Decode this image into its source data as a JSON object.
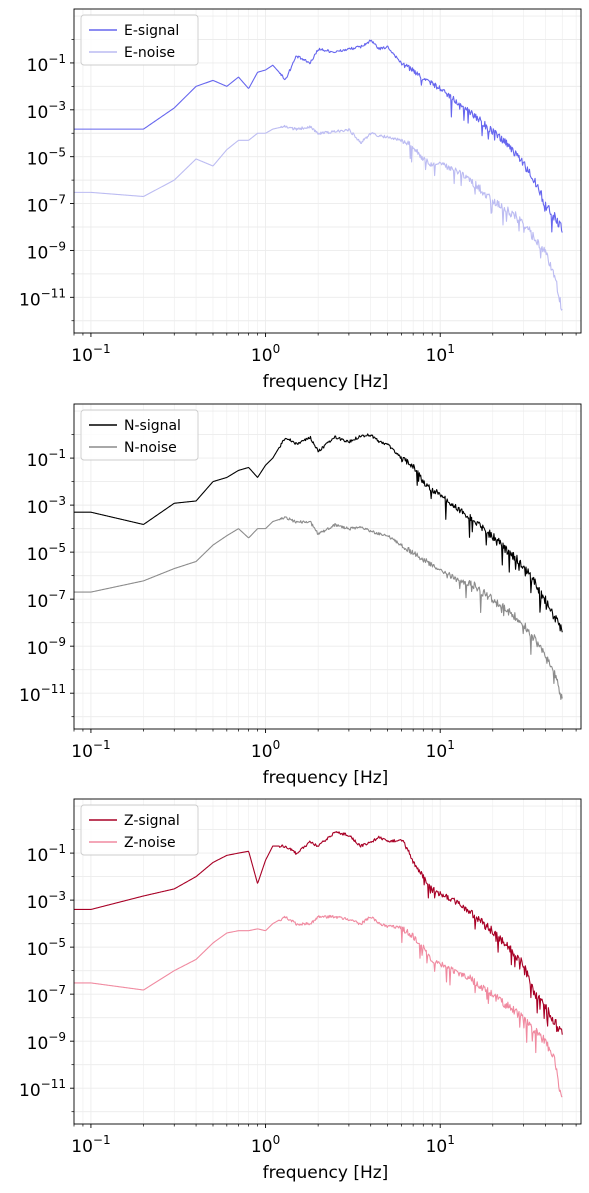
{
  "chart_data": [
    {
      "type": "line",
      "xscale": "log",
      "yscale": "log",
      "xlabel": "frequency [Hz]",
      "xlim": [
        0.08,
        64
      ],
      "ylim": [
        3e-13,
        20
      ],
      "xticks": [
        0.1,
        1,
        10
      ],
      "xtick_labels": [
        {
          "base": "10",
          "exp": "−1"
        },
        {
          "base": "10",
          "exp": "0"
        },
        {
          "base": "10",
          "exp": "1"
        }
      ],
      "yticks": [
        1e-11,
        1e-09,
        1e-07,
        1e-05,
        0.001,
        0.1
      ],
      "ytick_labels": [
        {
          "base": "10",
          "exp": "−11"
        },
        {
          "base": "10",
          "exp": "−9"
        },
        {
          "base": "10",
          "exp": "−7"
        },
        {
          "base": "10",
          "exp": "−5"
        },
        {
          "base": "10",
          "exp": "−3"
        },
        {
          "base": "10",
          "exp": "−1"
        }
      ],
      "grid": true,
      "legend": "top-left",
      "series": [
        {
          "name": "E-signal",
          "color": "#6666ee",
          "x": [
            0.05,
            0.1,
            0.2,
            0.3,
            0.4,
            0.5,
            0.6,
            0.7,
            0.8,
            0.9,
            1.0,
            1.1,
            1.3,
            1.5,
            1.8,
            2.0,
            2.5,
            3.0,
            3.5,
            4.0,
            4.5,
            5.0,
            6.0,
            7.0,
            8.0,
            9.0,
            10.0,
            12.0,
            15.0,
            20.0,
            25.0,
            30.0,
            35.0,
            40.0,
            45.0,
            50.0
          ],
          "y": [
            0.00015,
            0.00015,
            0.00015,
            0.0012,
            0.01,
            0.018,
            0.01,
            0.025,
            0.008,
            0.04,
            0.05,
            0.08,
            0.02,
            0.2,
            0.1,
            0.4,
            0.3,
            0.4,
            0.5,
            0.9,
            0.4,
            0.5,
            0.1,
            0.05,
            0.02,
            0.015,
            0.008,
            0.003,
            0.0008,
            0.00012,
            3e-05,
            5e-06,
            1e-06,
            1e-07,
            3e-08,
            1e-08
          ]
        },
        {
          "name": "E-noise",
          "color": "#bcbcf2",
          "x": [
            0.05,
            0.1,
            0.2,
            0.3,
            0.4,
            0.5,
            0.6,
            0.7,
            0.8,
            0.9,
            1.0,
            1.1,
            1.3,
            1.5,
            1.8,
            2.0,
            2.5,
            3.0,
            3.5,
            4.0,
            4.5,
            5.0,
            6.0,
            7.0,
            8.0,
            9.0,
            10.0,
            12.0,
            15.0,
            20.0,
            25.0,
            30.0,
            35.0,
            40.0,
            45.0,
            50.0
          ],
          "y": [
            3e-07,
            3e-07,
            2e-07,
            1e-06,
            8e-06,
            4e-06,
            2e-05,
            5e-05,
            5e-05,
            0.0001,
            0.0001,
            0.00015,
            0.0002,
            0.00015,
            0.0002,
            0.0001,
            0.00012,
            0.00015,
            4e-05,
            0.0001,
            8e-05,
            7e-05,
            5e-05,
            3e-05,
            8e-06,
            5e-06,
            5e-06,
            3e-06,
            1e-06,
            1.5e-07,
            5e-08,
            2e-08,
            3e-09,
            1e-09,
            1e-10,
            3e-12
          ]
        }
      ]
    },
    {
      "type": "line",
      "xscale": "log",
      "yscale": "log",
      "xlabel": "frequency [Hz]",
      "xlim": [
        0.08,
        64
      ],
      "ylim": [
        3e-13,
        20
      ],
      "xticks": [
        0.1,
        1,
        10
      ],
      "xtick_labels": [
        {
          "base": "10",
          "exp": "−1"
        },
        {
          "base": "10",
          "exp": "0"
        },
        {
          "base": "10",
          "exp": "1"
        }
      ],
      "yticks": [
        1e-11,
        1e-09,
        1e-07,
        1e-05,
        0.001,
        0.1
      ],
      "ytick_labels": [
        {
          "base": "10",
          "exp": "−11"
        },
        {
          "base": "10",
          "exp": "−9"
        },
        {
          "base": "10",
          "exp": "−7"
        },
        {
          "base": "10",
          "exp": "−5"
        },
        {
          "base": "10",
          "exp": "−3"
        },
        {
          "base": "10",
          "exp": "−1"
        }
      ],
      "grid": true,
      "legend": "top-left",
      "series": [
        {
          "name": "N-signal",
          "color": "#000000",
          "x": [
            0.05,
            0.1,
            0.2,
            0.3,
            0.4,
            0.5,
            0.6,
            0.7,
            0.8,
            0.9,
            1.0,
            1.1,
            1.3,
            1.5,
            1.8,
            2.0,
            2.5,
            3.0,
            3.5,
            4.0,
            4.5,
            5.0,
            6.0,
            7.0,
            8.0,
            9.0,
            10.0,
            12.0,
            15.0,
            20.0,
            25.0,
            30.0,
            35.0,
            40.0,
            45.0,
            50.0
          ],
          "y": [
            0.0005,
            0.0005,
            0.00015,
            0.0012,
            0.0015,
            0.01,
            0.015,
            0.03,
            0.04,
            0.015,
            0.05,
            0.1,
            0.8,
            0.4,
            0.8,
            0.2,
            0.8,
            0.5,
            0.9,
            1.0,
            0.5,
            0.4,
            0.1,
            0.05,
            0.01,
            0.005,
            0.003,
            0.001,
            0.0003,
            5e-05,
            1e-05,
            3e-06,
            5e-07,
            1e-07,
            2e-08,
            5e-09
          ]
        },
        {
          "name": "N-noise",
          "color": "#8c8c8c",
          "x": [
            0.05,
            0.1,
            0.2,
            0.3,
            0.4,
            0.5,
            0.6,
            0.7,
            0.8,
            0.9,
            1.0,
            1.1,
            1.3,
            1.5,
            1.8,
            2.0,
            2.5,
            3.0,
            3.5,
            4.0,
            4.5,
            5.0,
            6.0,
            7.0,
            8.0,
            9.0,
            10.0,
            12.0,
            15.0,
            20.0,
            25.0,
            30.0,
            35.0,
            40.0,
            45.0,
            50.0
          ],
          "y": [
            2e-07,
            2e-07,
            6e-07,
            2e-06,
            4e-06,
            2e-05,
            5e-05,
            0.0001,
            4e-05,
            0.0001,
            0.0001,
            0.0002,
            0.0003,
            0.0002,
            0.0002,
            6e-05,
            0.00015,
            0.0001,
            0.00012,
            8e-05,
            6e-05,
            5e-05,
            2e-05,
            1e-05,
            5e-06,
            3e-06,
            2e-06,
            8e-07,
            5e-07,
            1e-07,
            3e-08,
            1e-08,
            2e-09,
            5e-10,
            1e-10,
            5e-12
          ]
        }
      ]
    },
    {
      "type": "line",
      "xscale": "log",
      "yscale": "log",
      "xlabel": "frequency [Hz]",
      "xlim": [
        0.08,
        64
      ],
      "ylim": [
        3e-13,
        20
      ],
      "xticks": [
        0.1,
        1,
        10
      ],
      "xtick_labels": [
        {
          "base": "10",
          "exp": "−1"
        },
        {
          "base": "10",
          "exp": "0"
        },
        {
          "base": "10",
          "exp": "1"
        }
      ],
      "yticks": [
        1e-11,
        1e-09,
        1e-07,
        1e-05,
        0.001,
        0.1
      ],
      "ytick_labels": [
        {
          "base": "10",
          "exp": "−11"
        },
        {
          "base": "10",
          "exp": "−9"
        },
        {
          "base": "10",
          "exp": "−7"
        },
        {
          "base": "10",
          "exp": "−5"
        },
        {
          "base": "10",
          "exp": "−3"
        },
        {
          "base": "10",
          "exp": "−1"
        }
      ],
      "grid": true,
      "legend": "top-left",
      "series": [
        {
          "name": "Z-signal",
          "color": "#a80026",
          "x": [
            0.05,
            0.1,
            0.2,
            0.3,
            0.4,
            0.5,
            0.6,
            0.7,
            0.8,
            0.9,
            1.0,
            1.1,
            1.3,
            1.5,
            1.8,
            2.0,
            2.5,
            3.0,
            3.5,
            4.0,
            4.5,
            5.0,
            6.0,
            7.0,
            8.0,
            9.0,
            10.0,
            12.0,
            15.0,
            20.0,
            25.0,
            30.0,
            35.0,
            40.0,
            45.0,
            50.0
          ],
          "y": [
            0.0004,
            0.0004,
            0.0015,
            0.003,
            0.01,
            0.04,
            0.08,
            0.1,
            0.12,
            0.005,
            0.05,
            0.2,
            0.2,
            0.1,
            0.3,
            0.2,
            0.8,
            0.6,
            0.2,
            0.3,
            0.5,
            0.3,
            0.4,
            0.05,
            0.01,
            0.003,
            0.002,
            0.001,
            0.0003,
            5e-05,
            1e-05,
            2e-06,
            1e-07,
            3e-08,
            8e-09,
            2e-09
          ]
        },
        {
          "name": "Z-noise",
          "color": "#f08aa0",
          "x": [
            0.05,
            0.1,
            0.2,
            0.3,
            0.4,
            0.5,
            0.6,
            0.7,
            0.8,
            0.9,
            1.0,
            1.1,
            1.3,
            1.5,
            1.8,
            2.0,
            2.5,
            3.0,
            3.5,
            4.0,
            4.5,
            5.0,
            6.0,
            7.0,
            8.0,
            9.0,
            10.0,
            12.0,
            15.0,
            20.0,
            25.0,
            30.0,
            35.0,
            40.0,
            45.0,
            50.0
          ],
          "y": [
            3e-07,
            3e-07,
            1.5e-07,
            1e-06,
            3e-06,
            1.5e-05,
            4e-05,
            5e-05,
            5e-05,
            6e-05,
            5e-05,
            0.0001,
            0.0002,
            0.0001,
            0.0001,
            0.0002,
            0.0002,
            0.00015,
            0.0001,
            0.0002,
            0.0001,
            8e-05,
            7e-05,
            3e-05,
            1e-05,
            3e-06,
            2e-06,
            1e-06,
            5e-07,
            1e-07,
            3e-08,
            1e-08,
            3e-09,
            1e-09,
            2e-10,
            3e-12
          ]
        }
      ]
    }
  ]
}
